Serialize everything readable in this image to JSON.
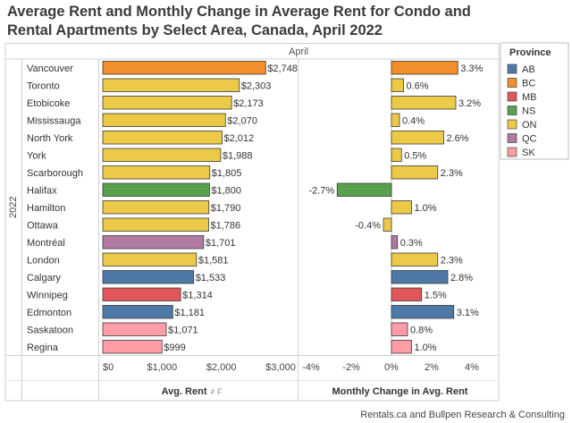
{
  "title": "Average Rent and Monthly Change in Average Rent for Condo and Rental Apartments by Select Area, Canada, April 2022",
  "source": "Rentals.ca and Bullpen Research & Consulting",
  "chart_data": {
    "type": "bar",
    "column_header": "April",
    "row_group_label": "2022",
    "categories": [
      "Vancouver",
      "Toronto",
      "Etobicoke",
      "Mississauga",
      "North York",
      "York",
      "Scarborough",
      "Halifax",
      "Hamilton",
      "Ottawa",
      "Montréal",
      "London",
      "Calgary",
      "Winnipeg",
      "Edmonton",
      "Saskatoon",
      "Regina"
    ],
    "provinces": [
      "BC",
      "ON",
      "ON",
      "ON",
      "ON",
      "ON",
      "ON",
      "NS",
      "ON",
      "ON",
      "QC",
      "ON",
      "AB",
      "MB",
      "AB",
      "SK",
      "SK"
    ],
    "series": [
      {
        "name": "Avg. Rent",
        "values": [
          2748,
          2303,
          2173,
          2070,
          2012,
          1988,
          1805,
          1800,
          1790,
          1786,
          1701,
          1581,
          1533,
          1314,
          1181,
          1071,
          999
        ],
        "labels": [
          "$2,748",
          "$2,303",
          "$2,173",
          "$2,070",
          "$2,012",
          "$1,988",
          "$1,805",
          "$1,800",
          "$1,790",
          "$1,786",
          "$1,701",
          "$1,581",
          "$1,533",
          "$1,314",
          "$1,181",
          "$1,071",
          "$999"
        ]
      },
      {
        "name": "Monthly Change in Avg. Rent",
        "values": [
          3.3,
          0.6,
          3.2,
          0.4,
          2.6,
          0.5,
          2.3,
          -2.7,
          1.0,
          -0.4,
          0.3,
          2.3,
          2.8,
          1.5,
          3.1,
          0.8,
          1.0
        ],
        "labels": [
          "3.3%",
          "0.6%",
          "3.2%",
          "0.4%",
          "2.6%",
          "0.5%",
          "2.3%",
          "-2.7%",
          "1.0%",
          "-0.4%",
          "0.3%",
          "2.3%",
          "2.8%",
          "1.5%",
          "3.1%",
          "0.8%",
          "1.0%"
        ]
      }
    ],
    "axes": {
      "rent": {
        "title": "Avg. Rent",
        "title_suffix": "≠ F",
        "min": 0,
        "max": 3000,
        "ticks": [
          0,
          1000,
          2000,
          3000
        ],
        "tick_labels": [
          "$0",
          "$1,000",
          "$2,000",
          "$3,000"
        ]
      },
      "change": {
        "title": "Monthly Change in Avg. Rent",
        "min": -4,
        "max": 4,
        "ticks": [
          -4,
          -2,
          0,
          2,
          4
        ],
        "tick_labels": [
          "-4%",
          "-2%",
          "0%",
          "2%",
          "4%"
        ]
      }
    },
    "legend": {
      "title": "Province",
      "position": "right",
      "items": [
        {
          "label": "AB",
          "color": "#4e79a7"
        },
        {
          "label": "BC",
          "color": "#f28e2b"
        },
        {
          "label": "MB",
          "color": "#e15759"
        },
        {
          "label": "NS",
          "color": "#59a14f"
        },
        {
          "label": "ON",
          "color": "#edc948"
        },
        {
          "label": "QC",
          "color": "#b07aa1"
        },
        {
          "label": "SK",
          "color": "#ff9da7"
        }
      ]
    }
  }
}
